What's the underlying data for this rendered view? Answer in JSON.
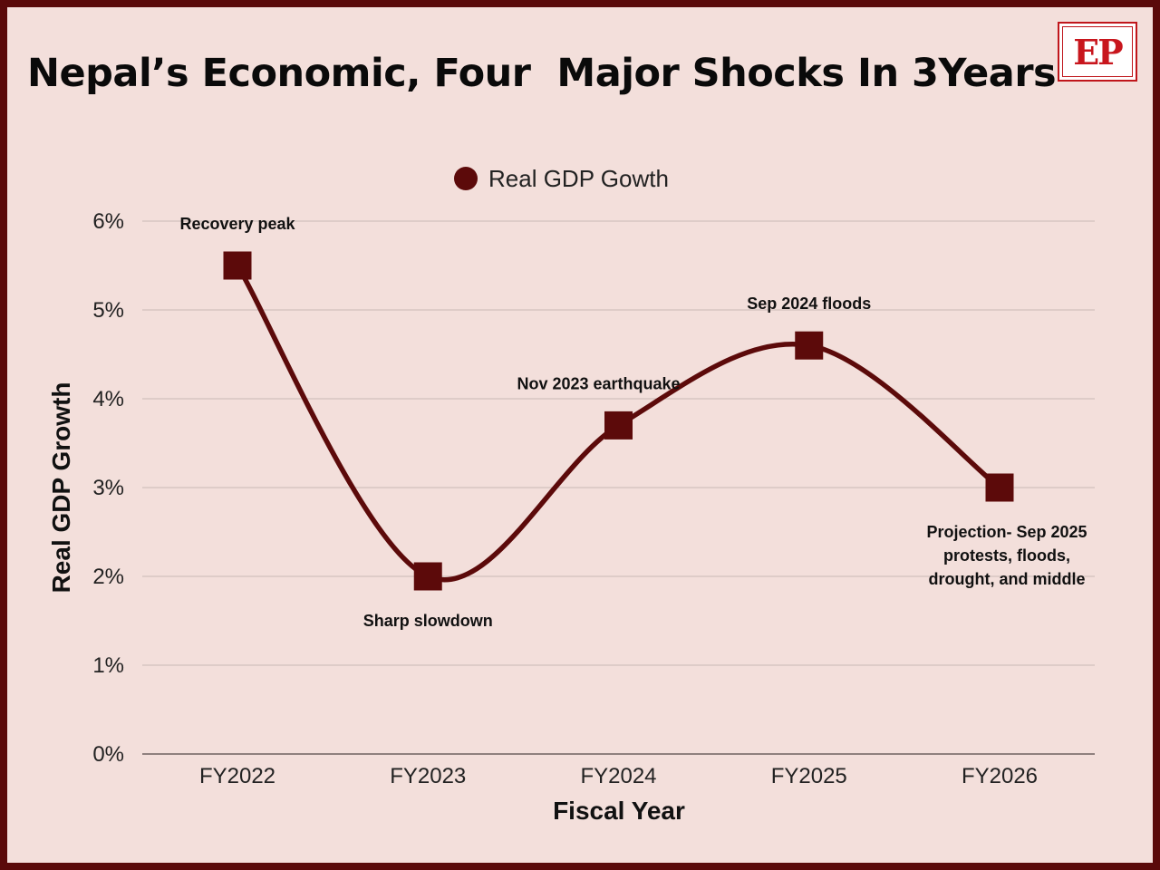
{
  "title": "Nepal’s Economic, Four  Major Shocks In 3Years",
  "logo_text": "EP",
  "colors": {
    "background": "#f3dfdb",
    "frame": "#5a0a0a",
    "series": "#5c0a0a",
    "grid": "#c9b8b5",
    "logo_red": "#c8161d"
  },
  "chart_data": {
    "type": "line",
    "categories": [
      "FY2022",
      "FY2023",
      "FY2024",
      "FY2025",
      "FY2026"
    ],
    "series": [
      {
        "name": "Real GDP Gowth",
        "values": [
          5.5,
          2.0,
          3.7,
          4.6,
          3.0
        ],
        "marker": "square",
        "smooth": true
      }
    ],
    "xlabel": "Fiscal Year",
    "ylabel": "Real GDP Growth",
    "ylim": [
      0,
      6
    ],
    "yticks": [
      "0%",
      "1%",
      "2%",
      "3%",
      "4%",
      "5%",
      "6%"
    ],
    "grid": true,
    "legend": "top-center",
    "annotations": [
      {
        "category": "FY2022",
        "position": "above",
        "lines": [
          "Recovery peak"
        ]
      },
      {
        "category": "FY2023",
        "position": "below",
        "lines": [
          "Sharp slowdown"
        ]
      },
      {
        "category": "FY2024",
        "position": "above",
        "lines": [
          "Nov 2023 earthquake"
        ]
      },
      {
        "category": "FY2025",
        "position": "above",
        "lines": [
          "Sep 2024 floods"
        ]
      },
      {
        "category": "FY2026",
        "position": "below",
        "lines": [
          "Projection- Sep 2025",
          "protests, floods,",
          "drought, and middle"
        ]
      }
    ]
  }
}
